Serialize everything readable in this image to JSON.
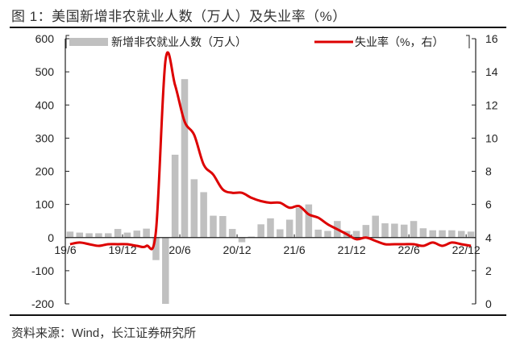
{
  "figure": {
    "title": "图 1：美国新增非农就业人数（万人）及失业率（%）",
    "source": "资料来源：Wind，长江证券研究所"
  },
  "chart_data": {
    "type": "bar+line",
    "title": "美国新增非农就业人数（万人）及失业率（%）",
    "x_ticks": [
      "19/6",
      "19/12",
      "20/6",
      "20/12",
      "21/6",
      "21/12",
      "22/6",
      "22/12"
    ],
    "x": [
      "2019-06",
      "2019-07",
      "2019-08",
      "2019-09",
      "2019-10",
      "2019-11",
      "2019-12",
      "2020-01",
      "2020-02",
      "2020-03",
      "2020-04",
      "2020-05",
      "2020-06",
      "2020-07",
      "2020-08",
      "2020-09",
      "2020-10",
      "2020-11",
      "2020-12",
      "2021-01",
      "2021-02",
      "2021-03",
      "2021-04",
      "2021-05",
      "2021-06",
      "2021-07",
      "2021-08",
      "2021-09",
      "2021-10",
      "2021-11",
      "2021-12",
      "2022-01",
      "2022-02",
      "2022-03",
      "2022-04",
      "2022-05",
      "2022-06",
      "2022-07",
      "2022-08",
      "2022-09",
      "2022-10",
      "2022-11",
      "2022-12"
    ],
    "series": [
      {
        "name": "新增非农就业人数（万人）",
        "type": "bar",
        "axis": "left",
        "color": "#c0c0c0",
        "values": [
          18,
          15,
          13,
          13,
          13,
          26,
          15,
          21,
          27,
          -68,
          -205,
          250,
          478,
          176,
          137,
          66,
          65,
          26,
          -14,
          3,
          40,
          58,
          25,
          54,
          90,
          100,
          24,
          20,
          50,
          20,
          20,
          38,
          66,
          43,
          42,
          39,
          50,
          28,
          22,
          22,
          22,
          20,
          18
        ]
      },
      {
        "name": "失业率（%，右）",
        "type": "line",
        "axis": "right",
        "color": "#dd0000",
        "values": [
          3.6,
          3.7,
          3.6,
          3.5,
          3.6,
          3.6,
          3.6,
          3.5,
          3.5,
          4.4,
          14.7,
          13.2,
          11.0,
          10.2,
          8.4,
          7.8,
          6.9,
          6.7,
          6.7,
          6.4,
          6.2,
          6.1,
          6.1,
          5.8,
          5.9,
          5.4,
          5.2,
          4.8,
          4.5,
          4.2,
          3.9,
          4.0,
          3.8,
          3.6,
          3.6,
          3.6,
          3.6,
          3.5,
          3.7,
          3.5,
          3.7,
          3.6,
          3.5
        ]
      }
    ],
    "left_axis": {
      "label": "万人",
      "ylim": [
        -200,
        600
      ],
      "ticks": [
        600,
        500,
        400,
        300,
        200,
        100,
        0,
        -100,
        -200
      ]
    },
    "right_axis": {
      "label": "%",
      "ylim": [
        0,
        16
      ],
      "ticks": [
        16,
        14,
        12,
        10,
        8,
        6,
        4,
        2,
        0
      ]
    },
    "legend": {
      "position": "top",
      "entries": [
        "新增非农就业人数（万人）",
        "失业率（%，右）"
      ]
    },
    "grid": false
  }
}
